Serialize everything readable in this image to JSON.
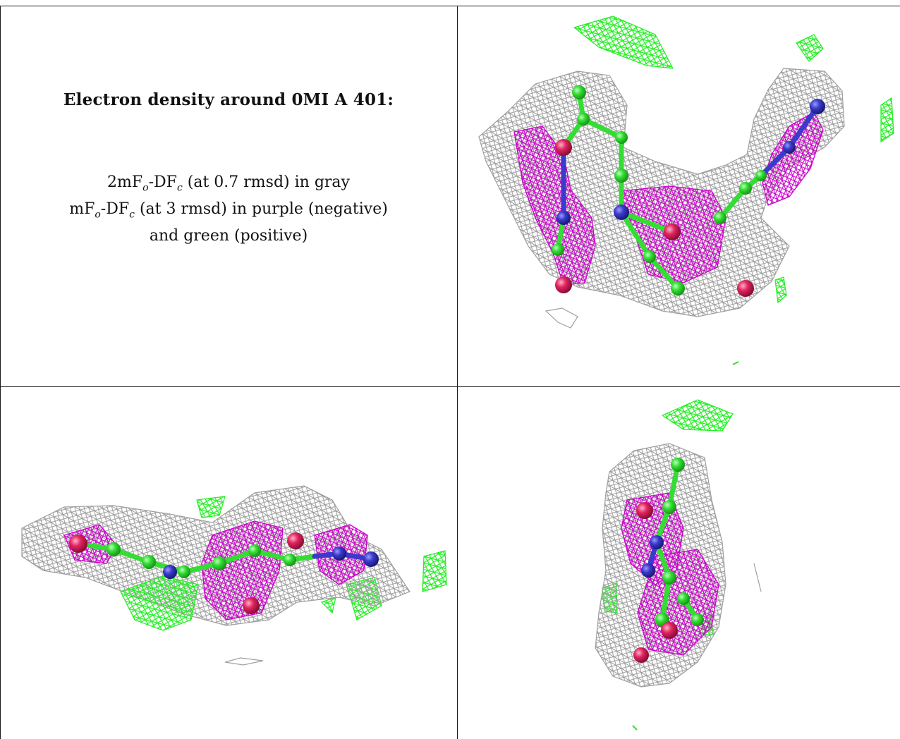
{
  "caption": {
    "title": "Electron density around 0MI A 401:",
    "line1": {
      "a": "2mF",
      "b": "o",
      "c": "-DF",
      "d": "c",
      "e": " (at 0.7 rmsd) in gray"
    },
    "line2": {
      "a": "mF",
      "b": "o",
      "c": "-DF",
      "d": "c",
      "e": " (at 3 rmsd) in purple (negative)"
    },
    "line3": "and green (positive)"
  },
  "colors": {
    "map_2fofc": "#9a9a9a",
    "map_negative": "#cc00cc",
    "map_positive": "#22ee22",
    "carbon": "#33dd33",
    "nitrogen": "#3a3acc",
    "oxygen": "#e0245e",
    "frame": "#1a1a1a"
  },
  "views": [
    "view-top-right",
    "view-bottom-left",
    "view-bottom-right"
  ]
}
